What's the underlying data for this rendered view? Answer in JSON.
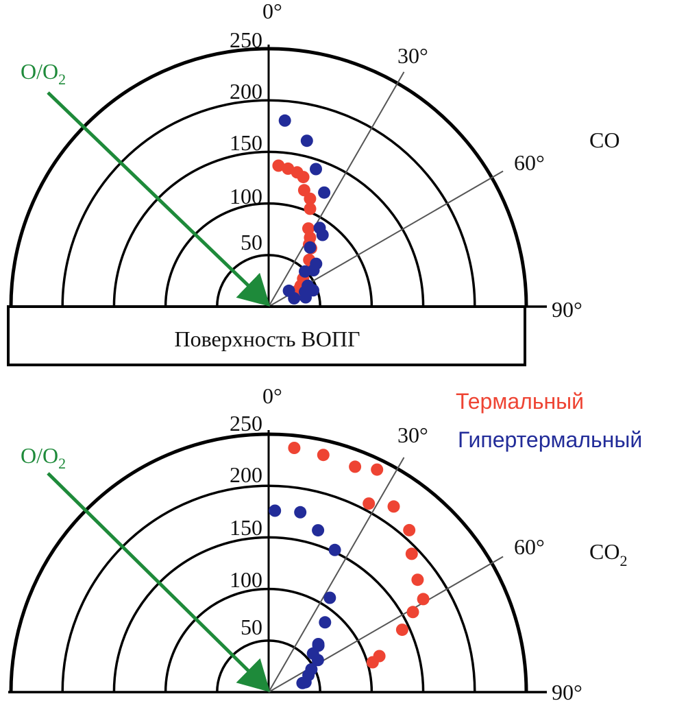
{
  "chart_data": [
    {
      "type": "scatter",
      "coordinate_system": "polar",
      "title": "CO",
      "angle_unit": "degrees",
      "angle_ticks": [
        "0°",
        "30°",
        "60°",
        "90°"
      ],
      "radial_ticks": [
        "50",
        "100",
        "150",
        "200",
        "250"
      ],
      "rlim": [
        0,
        250
      ],
      "arrow_label": "O/O2",
      "surface_label": "Поверхность ВОПГ",
      "series": [
        {
          "name": "Термальный",
          "color": "#ee4433",
          "points": [
            {
              "angle": 4,
              "r": 137
            },
            {
              "angle": 8,
              "r": 135
            },
            {
              "angle": 12,
              "r": 133
            },
            {
              "angle": 15,
              "r": 130
            },
            {
              "angle": 17,
              "r": 118
            },
            {
              "angle": 21,
              "r": 112
            },
            {
              "angle": 23,
              "r": 103
            },
            {
              "angle": 27,
              "r": 85
            },
            {
              "angle": 31,
              "r": 78
            },
            {
              "angle": 33,
              "r": 72
            },
            {
              "angle": 36,
              "r": 70
            },
            {
              "angle": 41,
              "r": 60
            },
            {
              "angle": 48,
              "r": 57
            },
            {
              "angle": 51,
              "r": 43
            },
            {
              "angle": 57,
              "r": 37
            },
            {
              "angle": 61,
              "r": 33
            },
            {
              "angle": 68,
              "r": 29
            }
          ]
        },
        {
          "name": "Гипертермальный",
          "color": "#222c99",
          "points": [
            {
              "angle": 5,
              "r": 181
            },
            {
              "angle": 13,
              "r": 165
            },
            {
              "angle": 19,
              "r": 141
            },
            {
              "angle": 26,
              "r": 123
            },
            {
              "angle": 33,
              "r": 91
            },
            {
              "angle": 37,
              "r": 87
            },
            {
              "angle": 35,
              "r": 70
            },
            {
              "angle": 48,
              "r": 62
            },
            {
              "angle": 51,
              "r": 56
            },
            {
              "angle": 46,
              "r": 49
            },
            {
              "angle": 70,
              "r": 46
            },
            {
              "angle": 62,
              "r": 43
            },
            {
              "angle": 68,
              "r": 38
            },
            {
              "angle": 76,
              "r": 37
            },
            {
              "angle": 72,
              "r": 26
            },
            {
              "angle": 52,
              "r": 25
            }
          ]
        }
      ]
    },
    {
      "type": "scatter",
      "coordinate_system": "polar",
      "title": "CO2",
      "angle_unit": "degrees",
      "angle_ticks": [
        "0°",
        "30°",
        "60°",
        "90°"
      ],
      "radial_ticks": [
        "50",
        "100",
        "150",
        "200",
        "250"
      ],
      "rlim": [
        0,
        250
      ],
      "arrow_label": "O/O2",
      "series": [
        {
          "name": "Термальный",
          "color": "#ee4433",
          "points": [
            {
              "angle": 6,
              "r": 238
            },
            {
              "angle": 13,
              "r": 236
            },
            {
              "angle": 21,
              "r": 234
            },
            {
              "angle": 26,
              "r": 240
            },
            {
              "angle": 28,
              "r": 207
            },
            {
              "angle": 34,
              "r": 217
            },
            {
              "angle": 41,
              "r": 208
            },
            {
              "angle": 46,
              "r": 193
            },
            {
              "angle": 53,
              "r": 181
            },
            {
              "angle": 59,
              "r": 175
            },
            {
              "angle": 61,
              "r": 160
            },
            {
              "angle": 65,
              "r": 143
            },
            {
              "angle": 72,
              "r": 113
            },
            {
              "angle": 74,
              "r": 105
            }
          ]
        },
        {
          "name": "Гипертермальный",
          "color": "#222c99",
          "points": [
            {
              "angle": 2,
              "r": 176
            },
            {
              "angle": 10,
              "r": 177
            },
            {
              "angle": 17,
              "r": 164
            },
            {
              "angle": 25,
              "r": 152
            },
            {
              "angle": 33,
              "r": 109
            },
            {
              "angle": 39,
              "r": 87
            },
            {
              "angle": 46,
              "r": 67
            },
            {
              "angle": 47,
              "r": 66
            },
            {
              "angle": 49,
              "r": 57
            },
            {
              "angle": 57,
              "r": 57
            },
            {
              "angle": 62,
              "r": 47
            },
            {
              "angle": 67,
              "r": 42
            },
            {
              "angle": 75,
              "r": 34
            },
            {
              "angle": 75,
              "r": 37
            }
          ]
        }
      ]
    }
  ],
  "legend": {
    "thermal": "Термальный",
    "hyperthermal": "Гипертермальный"
  },
  "colors": {
    "thermal": "#ee4433",
    "hyperthermal": "#222c99",
    "arrow": "#1e8a3a"
  }
}
